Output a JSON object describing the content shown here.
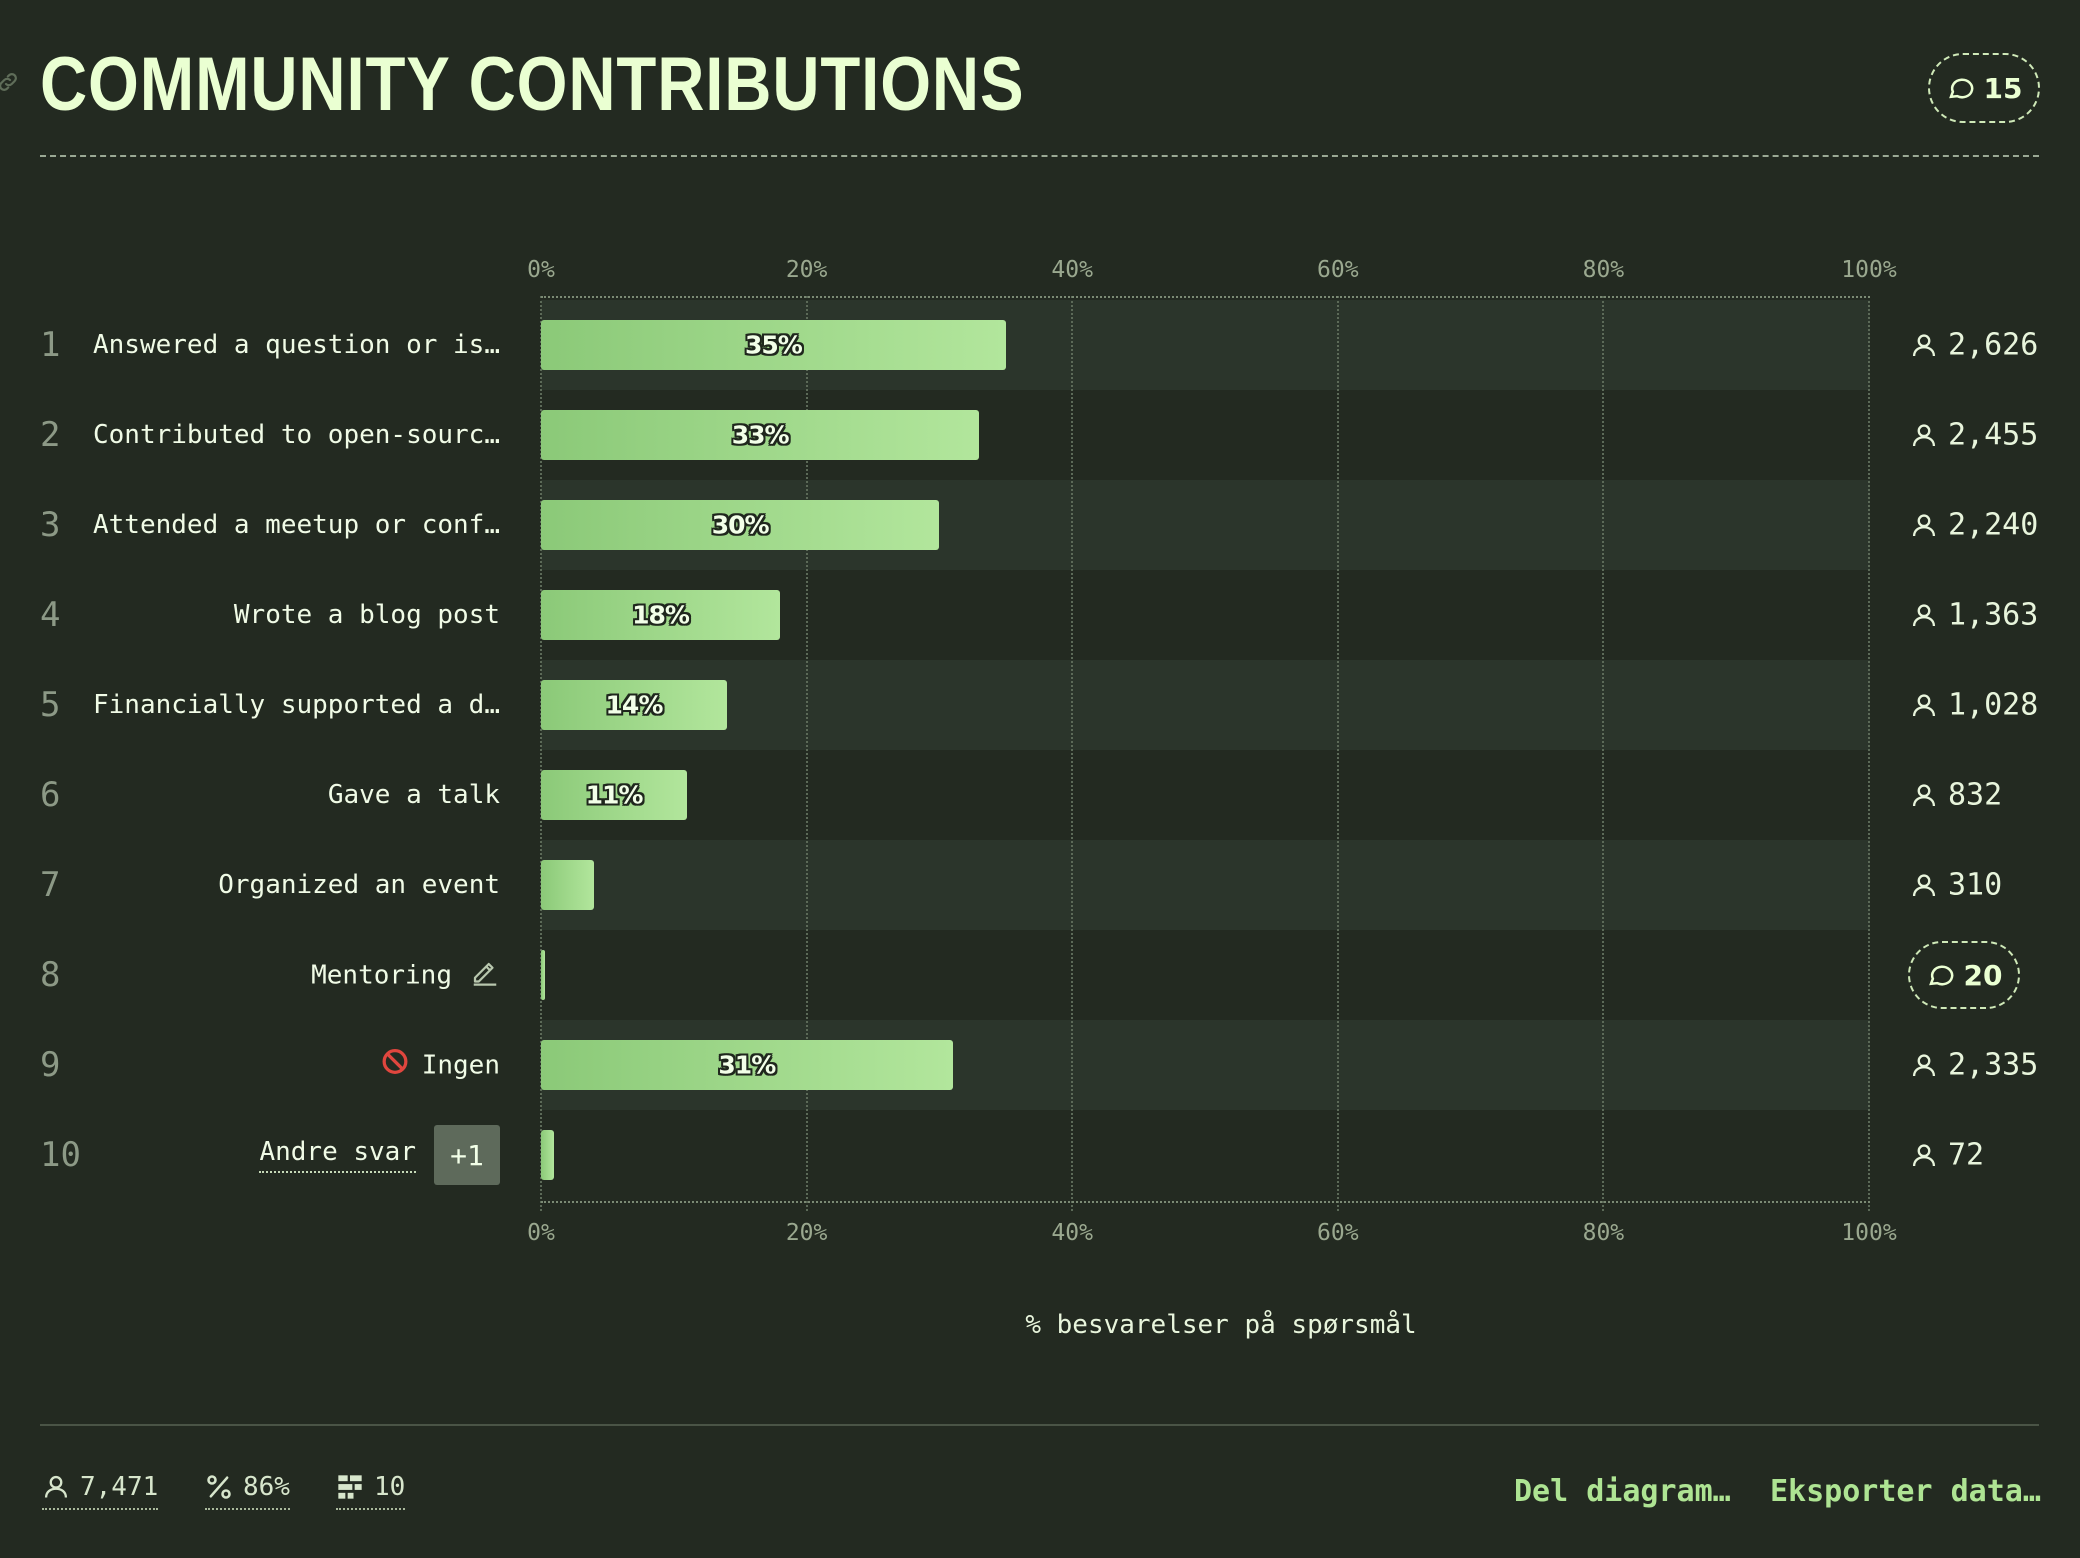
{
  "header": {
    "title": "COMMUNITY CONTRIBUTIONS",
    "comment_count": "15"
  },
  "chart_data": {
    "type": "bar",
    "orientation": "horizontal",
    "xlabel": "% besvarelser på spørsmål",
    "xlim": [
      0,
      100
    ],
    "ticks": [
      "0%",
      "20%",
      "40%",
      "60%",
      "80%",
      "100%"
    ],
    "grid": true,
    "rows": [
      {
        "rank": "1",
        "label": "Answered a question or is…",
        "value": 35,
        "value_label": "35%",
        "count": "2,626"
      },
      {
        "rank": "2",
        "label": "Contributed to open-sourc…",
        "value": 33,
        "value_label": "33%",
        "count": "2,455"
      },
      {
        "rank": "3",
        "label": "Attended a meetup or conf…",
        "value": 30,
        "value_label": "30%",
        "count": "2,240"
      },
      {
        "rank": "4",
        "label": "Wrote a blog post",
        "value": 18,
        "value_label": "18%",
        "count": "1,363"
      },
      {
        "rank": "5",
        "label": "Financially supported a d…",
        "value": 14,
        "value_label": "14%",
        "count": "1,028"
      },
      {
        "rank": "6",
        "label": "Gave a talk",
        "value": 11,
        "value_label": "11%",
        "count": "832"
      },
      {
        "rank": "7",
        "label": "Organized an event",
        "value": 4,
        "value_label": "",
        "count": "310"
      },
      {
        "rank": "8",
        "label": "Mentoring",
        "value": 0.3,
        "value_label": "",
        "count": "",
        "comment_count": "20",
        "icon": "edit-icon"
      },
      {
        "rank": "9",
        "label": "Ingen",
        "value": 31,
        "value_label": "31%",
        "count": "2,335",
        "icon": "no-entry-icon"
      },
      {
        "rank": "10",
        "label": "Andre svar",
        "value": 1,
        "value_label": "",
        "count": "72",
        "badge": "+1"
      }
    ]
  },
  "footer": {
    "respondents": "7,471",
    "percent": "86%",
    "options": "10",
    "share_label": "Del diagram…",
    "export_label": "Eksporter data…"
  },
  "colors": {
    "background": "#232a21",
    "bar_start": "#8bc978",
    "bar_end": "#b2e69c",
    "accent_link": "#aee493"
  }
}
